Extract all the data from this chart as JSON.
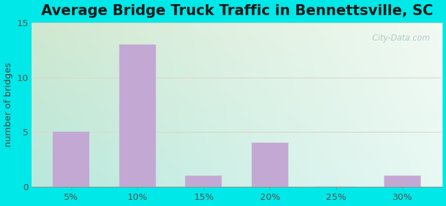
{
  "title": "Average Bridge Truck Traffic in Bennettsville, SC",
  "categories": [
    "5%",
    "10%",
    "15%",
    "20%",
    "25%",
    "30%"
  ],
  "values": [
    5,
    13,
    1,
    4,
    0,
    1
  ],
  "bar_color": "#c4a8d4",
  "bar_edgecolor": "#c4a8d4",
  "ylabel": "number of bridges",
  "ylim": [
    0,
    15
  ],
  "yticks": [
    0,
    5,
    10,
    15
  ],
  "outer_bg": "#00e8e8",
  "plot_bg_topleft": "#d0e8d0",
  "plot_bg_topright": "#f0f8f0",
  "plot_bg_bottomleft": "#b0e8e0",
  "plot_bg_bottomright": "#e8f8f4",
  "title_fontsize": 15,
  "axis_label_color": "#404040",
  "tick_color": "#505050",
  "watermark": "  City-Data.com",
  "grid_color": "#d8d8cc",
  "title_color": "#1a1a1a"
}
